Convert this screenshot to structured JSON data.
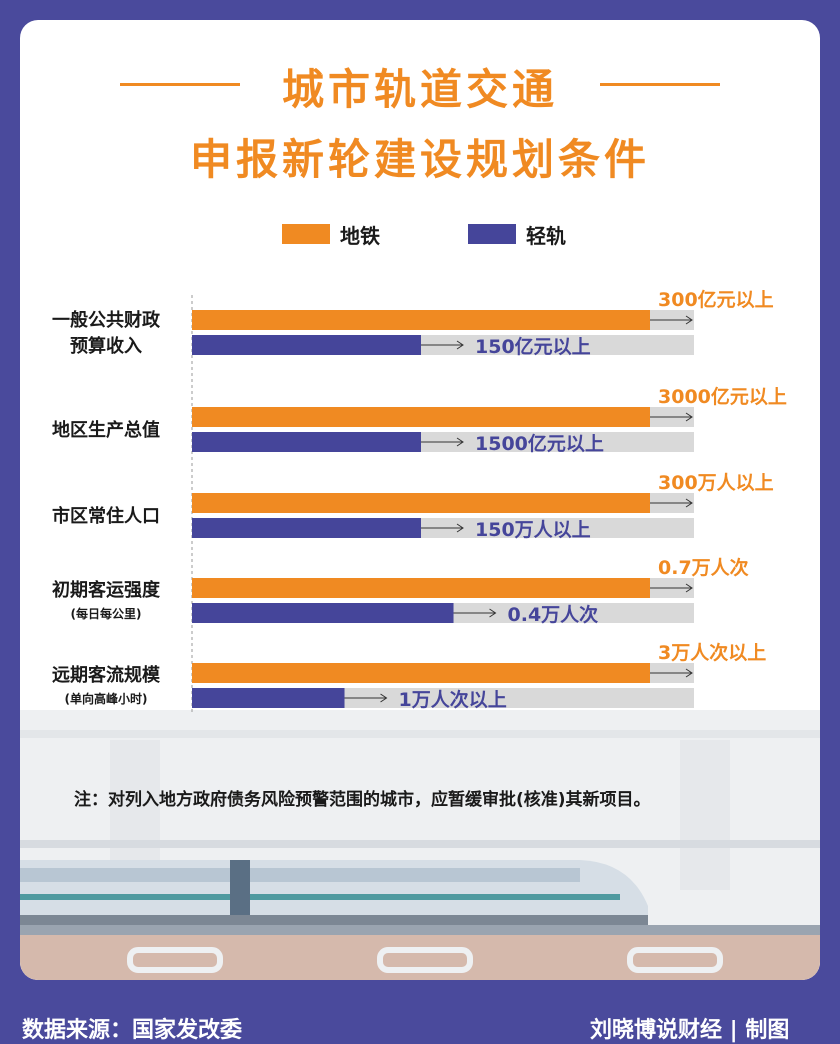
{
  "header": {
    "title_line1": "城市轨道交通",
    "title_line2": "申报新轮建设规划条件"
  },
  "legend": [
    {
      "label": "地铁",
      "color": "#f08a22"
    },
    {
      "label": "轻轨",
      "color": "#45459a"
    }
  ],
  "chart_data": {
    "type": "bar",
    "orientation": "horizontal",
    "categories": [
      {
        "name": "一般公共财政",
        "name2": "预算收入",
        "sub": ""
      },
      {
        "name": "地区生产总值",
        "name2": "",
        "sub": ""
      },
      {
        "name": "市区常住人口",
        "name2": "",
        "sub": ""
      },
      {
        "name": "初期客运强度",
        "name2": "",
        "sub": "(每日每公里)"
      },
      {
        "name": "远期客流规模",
        "name2": "",
        "sub": "(单向高峰小时)"
      }
    ],
    "series": [
      {
        "name": "地铁",
        "color": "#f08a22",
        "values": [
          1.0,
          1.0,
          1.0,
          1.0,
          1.0
        ],
        "labels": [
          "300亿元以上",
          "3000亿元以上",
          "300万人以上",
          "0.7万人次",
          "3万人次以上"
        ]
      },
      {
        "name": "轻轨",
        "color": "#45459a",
        "values": [
          0.5,
          0.5,
          0.5,
          0.571,
          0.333
        ],
        "labels": [
          "150亿元以上",
          "1500亿元以上",
          "150万人以上",
          "0.4万人次",
          "1万人次以上"
        ]
      }
    ],
    "track_color": "#d9d9d9"
  },
  "note": "注：对列入地方政府债务风险预警范围的城市，应暂缓审批(核准)其新项目。",
  "footer": {
    "source": "数据来源：国家发改委",
    "credit": "刘晓博说财经 | 制图"
  },
  "colors": {
    "background": "#4a4a9c",
    "accent": "#f08a22",
    "secondary": "#45459a"
  }
}
